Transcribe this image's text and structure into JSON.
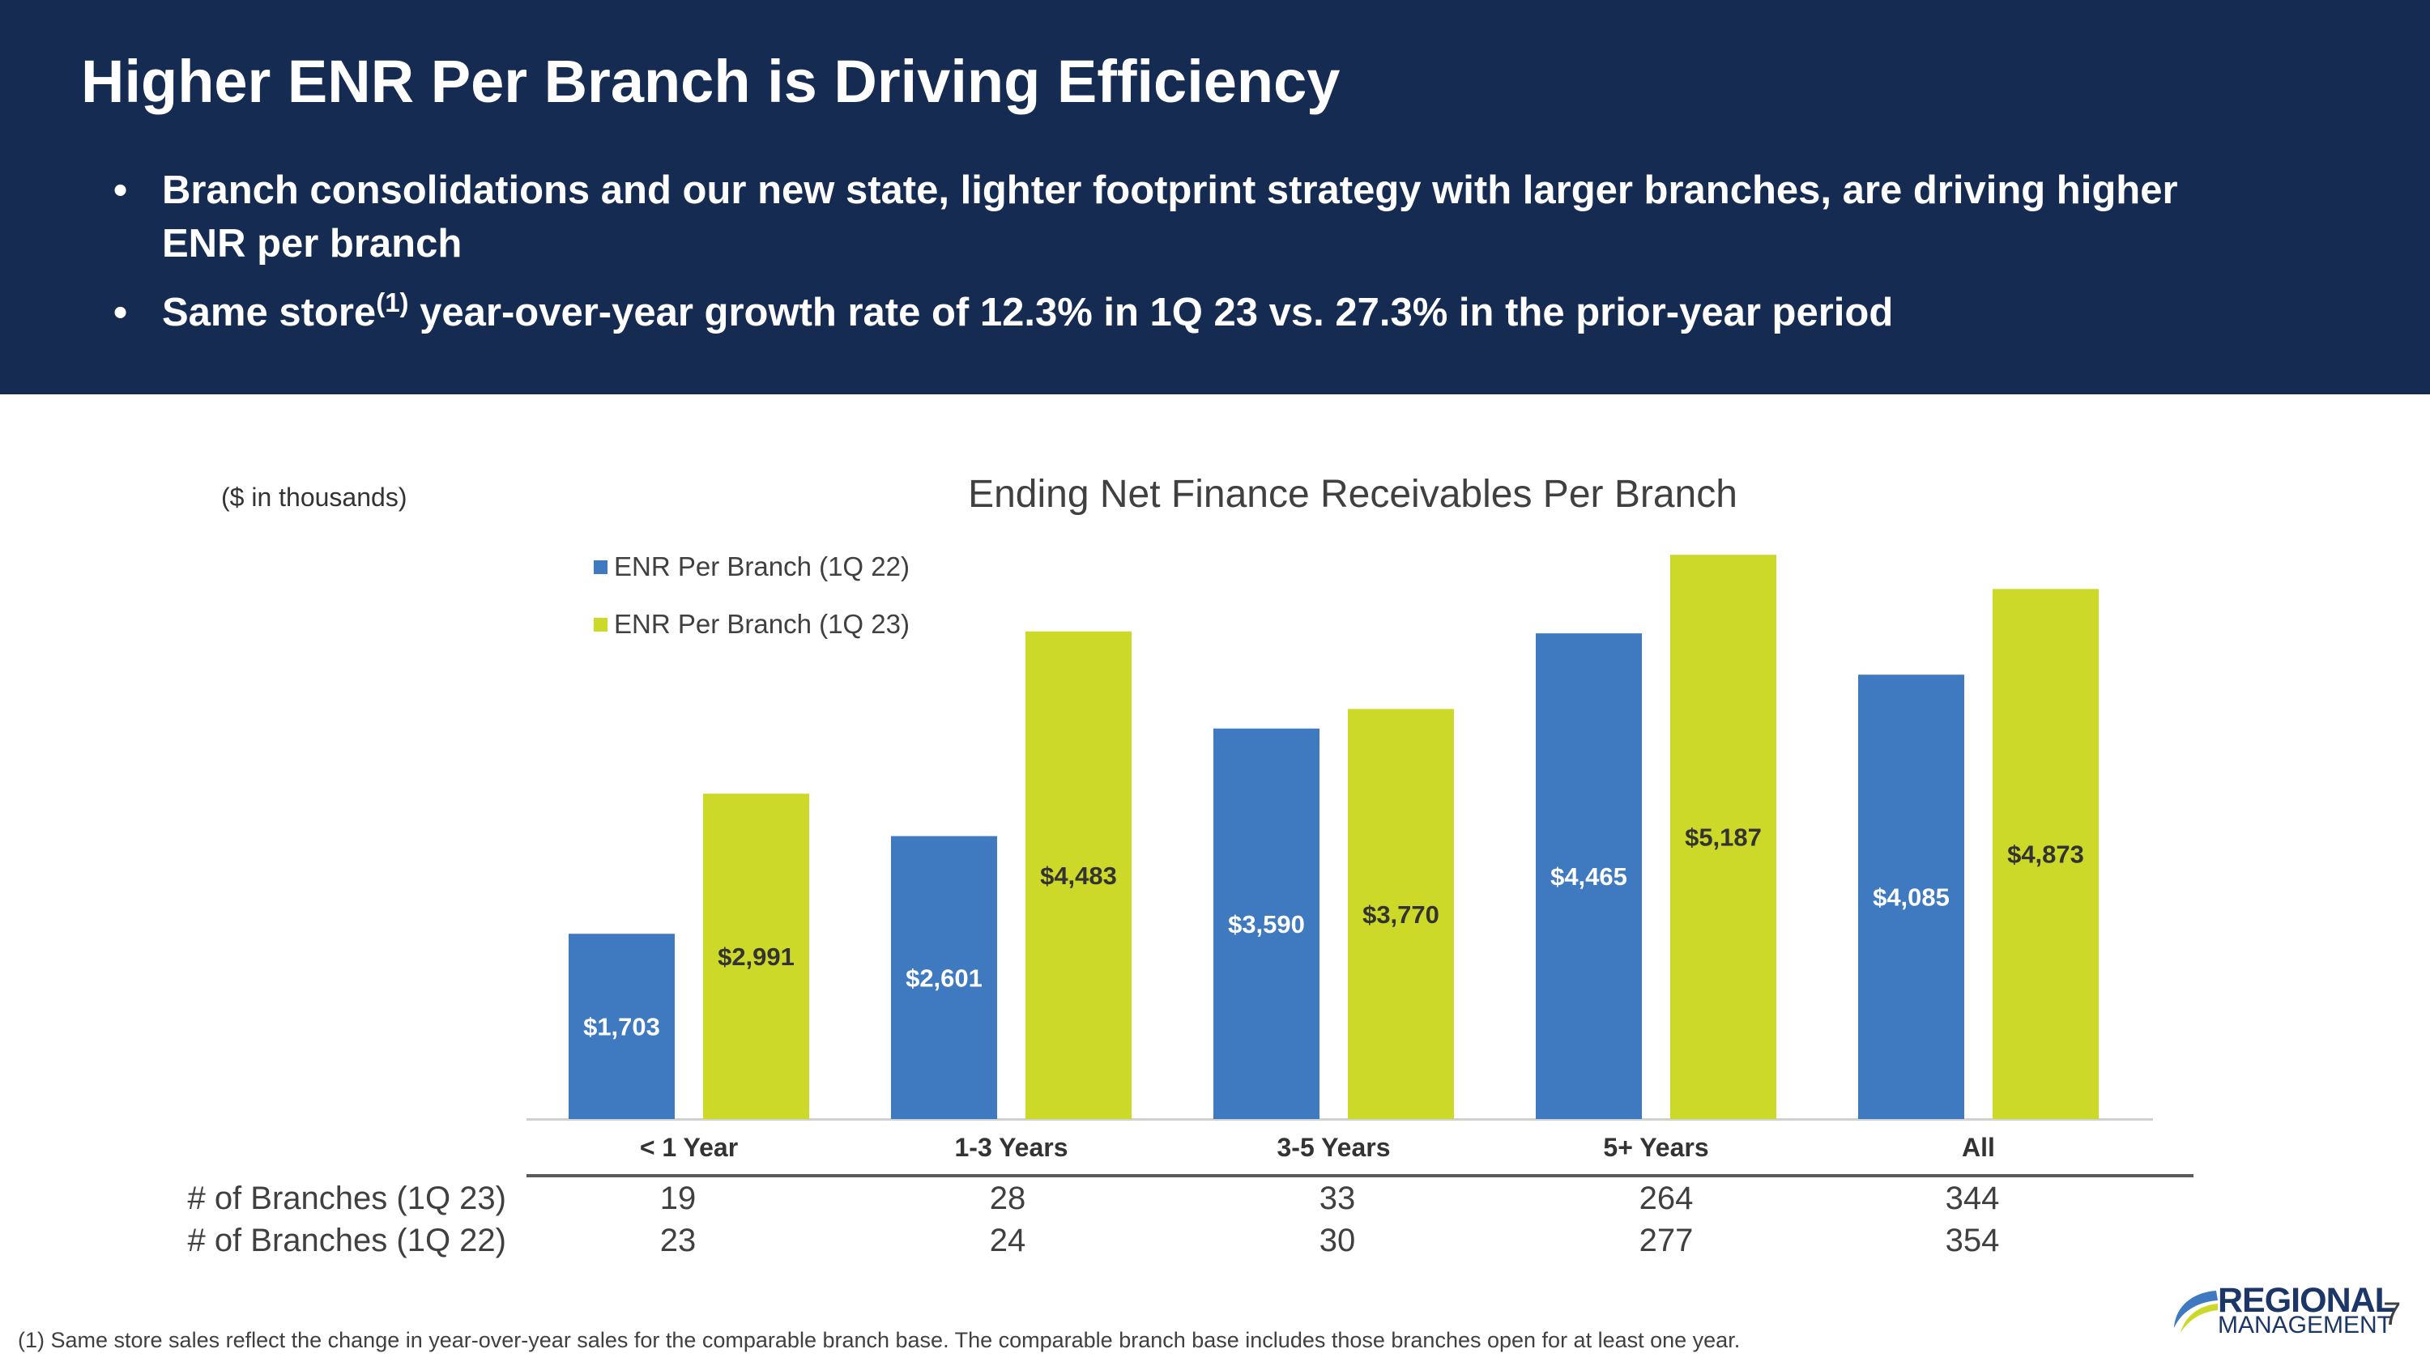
{
  "slide": {
    "title": "Higher ENR Per Branch is Driving Efficiency",
    "bullets": [
      {
        "before": "Branch consolidations and our new state, lighter footprint strategy with larger branches, are driving higher ENR per branch",
        "sup": "",
        "after": ""
      },
      {
        "before": "Same store",
        "sup": "(1)",
        "after": " year-over-year growth rate of 12.3% in 1Q 23 vs. 27.3% in the prior-year period"
      }
    ],
    "bullet_symbol": "•",
    "unit_note": "($ in thousands)",
    "footnote": "(1)  Same store sales reflect the change in year-over-year sales for the comparable branch base. The comparable branch base includes those branches open for at least one year.",
    "page_number": "7",
    "logo": {
      "line1": "REGIONAL",
      "line2": "MANAGEMENT",
      "mark": "®"
    }
  },
  "colors": {
    "header_bg": "#152b52",
    "series_1q22": "#3f7ac0",
    "series_1q23": "#cdd928",
    "label_on_blue": "#ffffff",
    "label_on_green": "#333333"
  },
  "chart_data": {
    "type": "bar",
    "title": "Ending Net Finance Receivables Per Branch",
    "xlabel": "",
    "ylabel": "",
    "ylim": [
      0,
      5300
    ],
    "grid": false,
    "legend_position": "top-left",
    "categories": [
      "< 1 Year",
      "1-3 Years",
      "3-5 Years",
      "5+ Years",
      "All"
    ],
    "series": [
      {
        "name": "ENR Per Branch (1Q 22)",
        "values": [
          1703,
          2601,
          3590,
          4465,
          4085
        ],
        "labels": [
          "$1,703",
          "$2,601",
          "$3,590",
          "$4,465",
          "$4,085"
        ]
      },
      {
        "name": "ENR Per Branch (1Q 23)",
        "values": [
          2991,
          4483,
          3770,
          5187,
          4873
        ],
        "labels": [
          "$2,991",
          "$4,483",
          "$3,770",
          "$5,187",
          "$4,873"
        ]
      }
    ]
  },
  "branch_table": {
    "rows": [
      {
        "label": "# of Branches (1Q 23)",
        "values": [
          "19",
          "28",
          "33",
          "264",
          "344"
        ]
      },
      {
        "label": "# of Branches (1Q 22)",
        "values": [
          "23",
          "24",
          "30",
          "277",
          "354"
        ]
      }
    ]
  }
}
